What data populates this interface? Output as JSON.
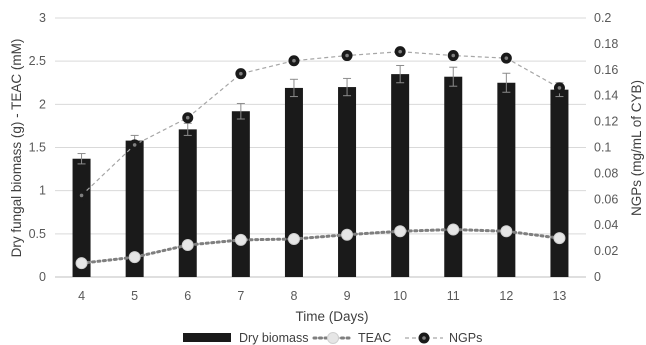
{
  "chart_data": {
    "type": "bar",
    "title": "",
    "x": [
      4,
      5,
      6,
      7,
      8,
      9,
      10,
      11,
      12,
      13
    ],
    "xlabel": "Time (Days)",
    "ylabel_left": "Dry  fungal biomass (g)  -  TEAC (mM)",
    "ylabel_right": "NGPs (mg/mL of CYB)",
    "ylim_left": [
      0,
      3
    ],
    "ylim_right": [
      0,
      0.2
    ],
    "yticks_left": [
      "0",
      "0.5",
      "1",
      "1.5",
      "2",
      "2.5",
      "3"
    ],
    "yticks_right": [
      "0",
      "0.02",
      "0.04",
      "0.06",
      "0.08",
      "0.1",
      "0.12",
      "0.14",
      "0.16",
      "0.18",
      "0.2"
    ],
    "grid": true,
    "legend_position": "bottom",
    "series": [
      {
        "name": "Dry biomass",
        "kind": "bar",
        "axis": "left",
        "color": "#1a1a1a",
        "values": [
          1.37,
          1.58,
          1.71,
          1.92,
          2.19,
          2.2,
          2.35,
          2.32,
          2.25,
          2.17
        ],
        "errors": [
          0.06,
          0.06,
          0.07,
          0.09,
          0.1,
          0.1,
          0.1,
          0.11,
          0.11,
          0.08
        ]
      },
      {
        "name": "TEAC",
        "kind": "line-dotted",
        "axis": "left",
        "color": "#7f7f7f",
        "values": [
          0.16,
          0.23,
          0.37,
          0.43,
          0.44,
          0.49,
          0.53,
          0.55,
          0.53,
          0.45
        ]
      },
      {
        "name": "NGPs",
        "kind": "line-dashed",
        "axis": "right",
        "color": "#a6a6a6",
        "values": [
          0.063,
          0.102,
          0.123,
          0.157,
          0.167,
          0.171,
          0.174,
          0.171,
          0.169,
          0.146
        ]
      }
    ]
  }
}
